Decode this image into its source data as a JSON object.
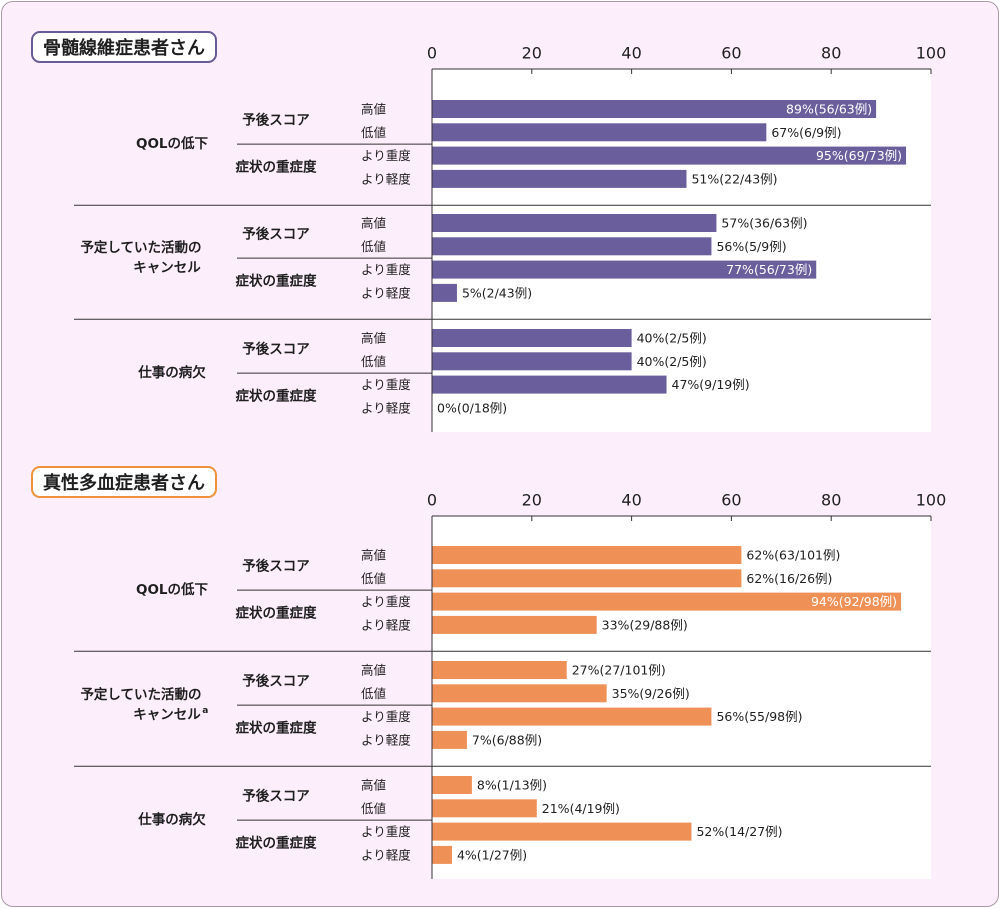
{
  "colors": {
    "background": "#fdeefc",
    "panel_1_bar": "#6a5f9c",
    "panel_2_bar": "#ef9157",
    "panel_1_badge_border": "#665b95",
    "panel_2_badge_border": "#f0913c"
  },
  "chart_data": [
    {
      "type": "bar",
      "orientation": "horizontal",
      "title": "骨髄線維症患者さん",
      "xlim": [
        0,
        100
      ],
      "xticks": [
        0,
        20,
        40,
        60,
        80,
        100
      ],
      "groups": [
        {
          "label": [
            "QOLの低下"
          ],
          "subgroups": [
            {
              "label": "予後スコア",
              "bars": [
                {
                  "label": "高値",
                  "value": 89,
                  "text": "89%(56/63例)"
                },
                {
                  "label": "低値",
                  "value": 67,
                  "text": "67%(6/9例)"
                }
              ]
            },
            {
              "label": "症状の重症度",
              "bars": [
                {
                  "label": "より重度",
                  "value": 95,
                  "text": "95%(69/73例)"
                },
                {
                  "label": "より軽度",
                  "value": 51,
                  "text": "51%(22/43例)"
                }
              ]
            }
          ]
        },
        {
          "label": [
            "予定していた活動の",
            "キャンセル"
          ],
          "subgroups": [
            {
              "label": "予後スコア",
              "bars": [
                {
                  "label": "高値",
                  "value": 57,
                  "text": "57%(36/63例)"
                },
                {
                  "label": "低値",
                  "value": 56,
                  "text": "56%(5/9例)"
                }
              ]
            },
            {
              "label": "症状の重症度",
              "bars": [
                {
                  "label": "より重度",
                  "value": 77,
                  "text": "77%(56/73例)"
                },
                {
                  "label": "より軽度",
                  "value": 5,
                  "text": "5%(2/43例)"
                }
              ]
            }
          ]
        },
        {
          "label": [
            "仕事の病欠"
          ],
          "subgroups": [
            {
              "label": "予後スコア",
              "bars": [
                {
                  "label": "高値",
                  "value": 40,
                  "text": "40%(2/5例)"
                },
                {
                  "label": "低値",
                  "value": 40,
                  "text": "40%(2/5例)"
                }
              ]
            },
            {
              "label": "症状の重症度",
              "bars": [
                {
                  "label": "より重度",
                  "value": 47,
                  "text": "47%(9/19例)"
                },
                {
                  "label": "より軽度",
                  "value": 0,
                  "text": "0%(0/18例)"
                }
              ]
            }
          ]
        }
      ]
    },
    {
      "type": "bar",
      "orientation": "horizontal",
      "title": "真性多血症患者さん",
      "xlim": [
        0,
        100
      ],
      "xticks": [
        0,
        20,
        40,
        60,
        80,
        100
      ],
      "groups": [
        {
          "label": [
            "QOLの低下"
          ],
          "subgroups": [
            {
              "label": "予後スコア",
              "bars": [
                {
                  "label": "高値",
                  "value": 62,
                  "text": "62%(63/101例)"
                },
                {
                  "label": "低値",
                  "value": 62,
                  "text": "62%(16/26例)"
                }
              ]
            },
            {
              "label": "症状の重症度",
              "bars": [
                {
                  "label": "より重度",
                  "value": 94,
                  "text": "94%(92/98例)"
                },
                {
                  "label": "より軽度",
                  "value": 33,
                  "text": "33%(29/88例)"
                }
              ]
            }
          ]
        },
        {
          "label": [
            "予定していた活動の",
            "キャンセル"
          ],
          "superscript": "a",
          "subgroups": [
            {
              "label": "予後スコア",
              "bars": [
                {
                  "label": "高値",
                  "value": 27,
                  "text": "27%(27/101例)"
                },
                {
                  "label": "低値",
                  "value": 35,
                  "text": "35%(9/26例)"
                }
              ]
            },
            {
              "label": "症状の重症度",
              "bars": [
                {
                  "label": "より重度",
                  "value": 56,
                  "text": "56%(55/98例)"
                },
                {
                  "label": "より軽度",
                  "value": 7,
                  "text": "7%(6/88例)"
                }
              ]
            }
          ]
        },
        {
          "label": [
            "仕事の病欠"
          ],
          "subgroups": [
            {
              "label": "予後スコア",
              "bars": [
                {
                  "label": "高値",
                  "value": 8,
                  "text": "8%(1/13例)"
                },
                {
                  "label": "低値",
                  "value": 21,
                  "text": "21%(4/19例)"
                }
              ]
            },
            {
              "label": "症状の重症度",
              "bars": [
                {
                  "label": "より重度",
                  "value": 52,
                  "text": "52%(14/27例)"
                },
                {
                  "label": "より軽度",
                  "value": 4,
                  "text": "4%(1/27例)"
                }
              ]
            }
          ]
        }
      ]
    }
  ]
}
